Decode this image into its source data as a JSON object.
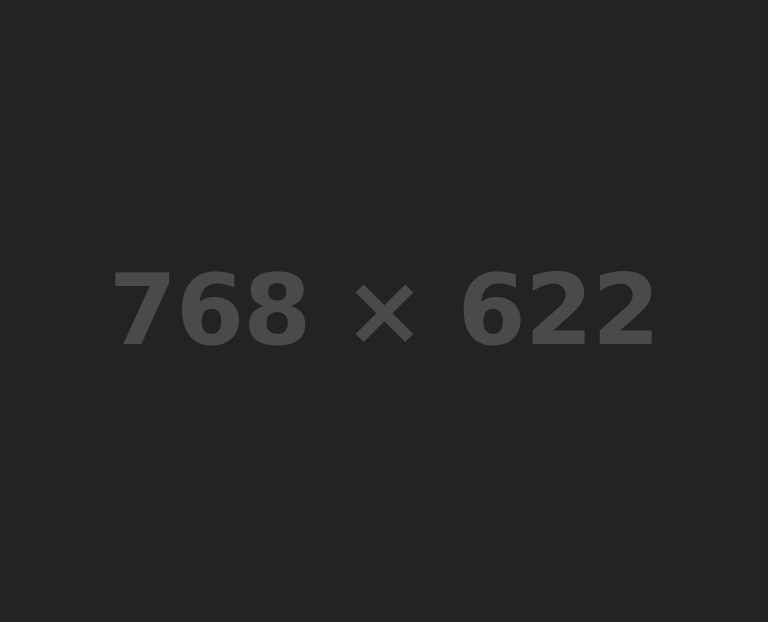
{
  "placeholder": {
    "label": "768 × 622",
    "background_color": "#232323",
    "text_color": "#4a4a4a"
  }
}
